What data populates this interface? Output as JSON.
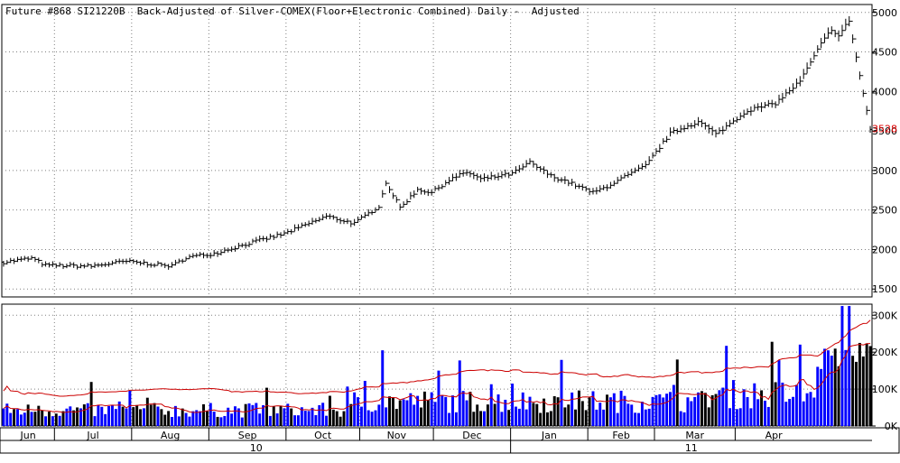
{
  "title": "Future #868 SI21220B  Back-Adjusted of Silver-COMEX(Floor+Electronic Combined) Daily -  Adjusted",
  "last_price_label": "3528",
  "colors": {
    "price_bar": "#000000",
    "last_price": "#e00000",
    "volume_up": "#0000ff",
    "volume_down": "#000000",
    "moving_average": "#cc0000",
    "grid": "#808080"
  },
  "chart_data": [
    {
      "type": "bar",
      "subtype": "ohlc-price",
      "y_ticks": [
        "5000",
        "4500",
        "4000",
        "3500",
        "3000",
        "2500",
        "2000",
        "1500"
      ],
      "ylim": [
        1400,
        5100
      ],
      "grid": "dotted",
      "last_price": 3528,
      "x_months": [
        "Jun",
        "Jul",
        "Aug",
        "Sep",
        "Oct",
        "Nov",
        "Dec",
        "Jan",
        "Feb",
        "Mar",
        "Apr"
      ],
      "x_years": [
        "10",
        "11"
      ],
      "price_path": [
        {
          "day": 0,
          "price": 1840
        },
        {
          "day": 8,
          "price": 1890
        },
        {
          "day": 12,
          "price": 1800
        },
        {
          "day": 25,
          "price": 1790
        },
        {
          "day": 35,
          "price": 1850
        },
        {
          "day": 48,
          "price": 1790
        },
        {
          "day": 52,
          "price": 1900
        },
        {
          "day": 60,
          "price": 1950
        },
        {
          "day": 70,
          "price": 2080
        },
        {
          "day": 80,
          "price": 2200
        },
        {
          "day": 92,
          "price": 2420
        },
        {
          "day": 100,
          "price": 2330
        },
        {
          "day": 107,
          "price": 2550
        },
        {
          "day": 109,
          "price": 2850
        },
        {
          "day": 113,
          "price": 2530
        },
        {
          "day": 118,
          "price": 2760
        },
        {
          "day": 122,
          "price": 2720
        },
        {
          "day": 127,
          "price": 2880
        },
        {
          "day": 132,
          "price": 2980
        },
        {
          "day": 136,
          "price": 2890
        },
        {
          "day": 145,
          "price": 2960
        },
        {
          "day": 150,
          "price": 3100
        },
        {
          "day": 156,
          "price": 2930
        },
        {
          "day": 160,
          "price": 2870
        },
        {
          "day": 168,
          "price": 2720
        },
        {
          "day": 172,
          "price": 2800
        },
        {
          "day": 183,
          "price": 3060
        },
        {
          "day": 190,
          "price": 3470
        },
        {
          "day": 198,
          "price": 3620
        },
        {
          "day": 203,
          "price": 3460
        },
        {
          "day": 212,
          "price": 3760
        },
        {
          "day": 220,
          "price": 3850
        },
        {
          "day": 227,
          "price": 4130
        },
        {
          "day": 233,
          "price": 4600
        },
        {
          "day": 236,
          "price": 4790
        },
        {
          "day": 238,
          "price": 4700
        },
        {
          "day": 241,
          "price": 4900
        },
        {
          "day": 244,
          "price": 4200
        },
        {
          "day": 247,
          "price": 3528
        }
      ]
    },
    {
      "type": "bar",
      "subtype": "volume",
      "y_ticks": [
        "300K",
        "200K",
        "100K",
        "0K"
      ],
      "ylim": [
        0,
        330000
      ],
      "moving_averages": 2,
      "spike_days": [
        {
          "day": 108,
          "value": 205000
        },
        {
          "day": 124,
          "value": 150000
        },
        {
          "day": 192,
          "value": 180000
        },
        {
          "day": 239,
          "value": 325000
        },
        {
          "day": 241,
          "value": 325000
        },
        {
          "day": 244,
          "value": 225000
        }
      ]
    }
  ]
}
